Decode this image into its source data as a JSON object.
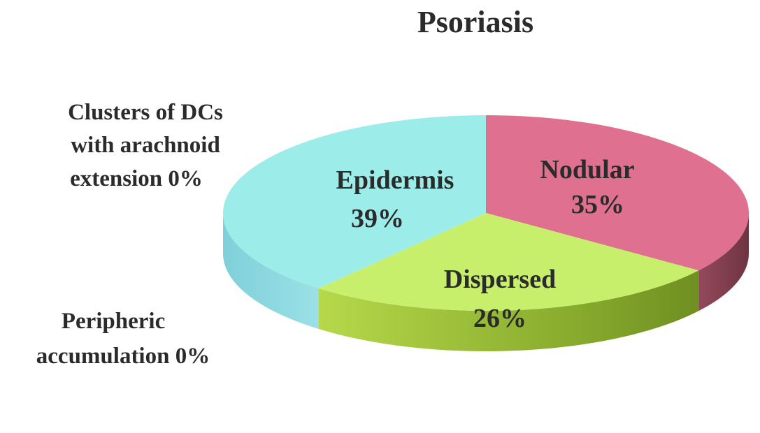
{
  "chart_data": {
    "type": "pie",
    "title": "Psoriasis",
    "three_d": true,
    "slices": [
      {
        "label": "Nodular",
        "value_text": "35%",
        "value": 35,
        "color": "#e07090",
        "side_color": "#8a4556"
      },
      {
        "label": "Dispersed",
        "value_text": "26%",
        "value": 26,
        "color": "#c8ef6c",
        "side_color": "#8fb033"
      },
      {
        "label": "Epidermis",
        "value_text": "39%",
        "value": 39,
        "color": "#9cecea",
        "side_color": "#7ecdd8"
      }
    ],
    "zero_entries": [
      {
        "lines": [
          "Clusters of DCs",
          "with arachnoid",
          "extension 0%"
        ],
        "value": 0
      },
      {
        "lines": [
          "Peripheric",
          "accumulation 0%"
        ],
        "value": 0
      }
    ]
  }
}
